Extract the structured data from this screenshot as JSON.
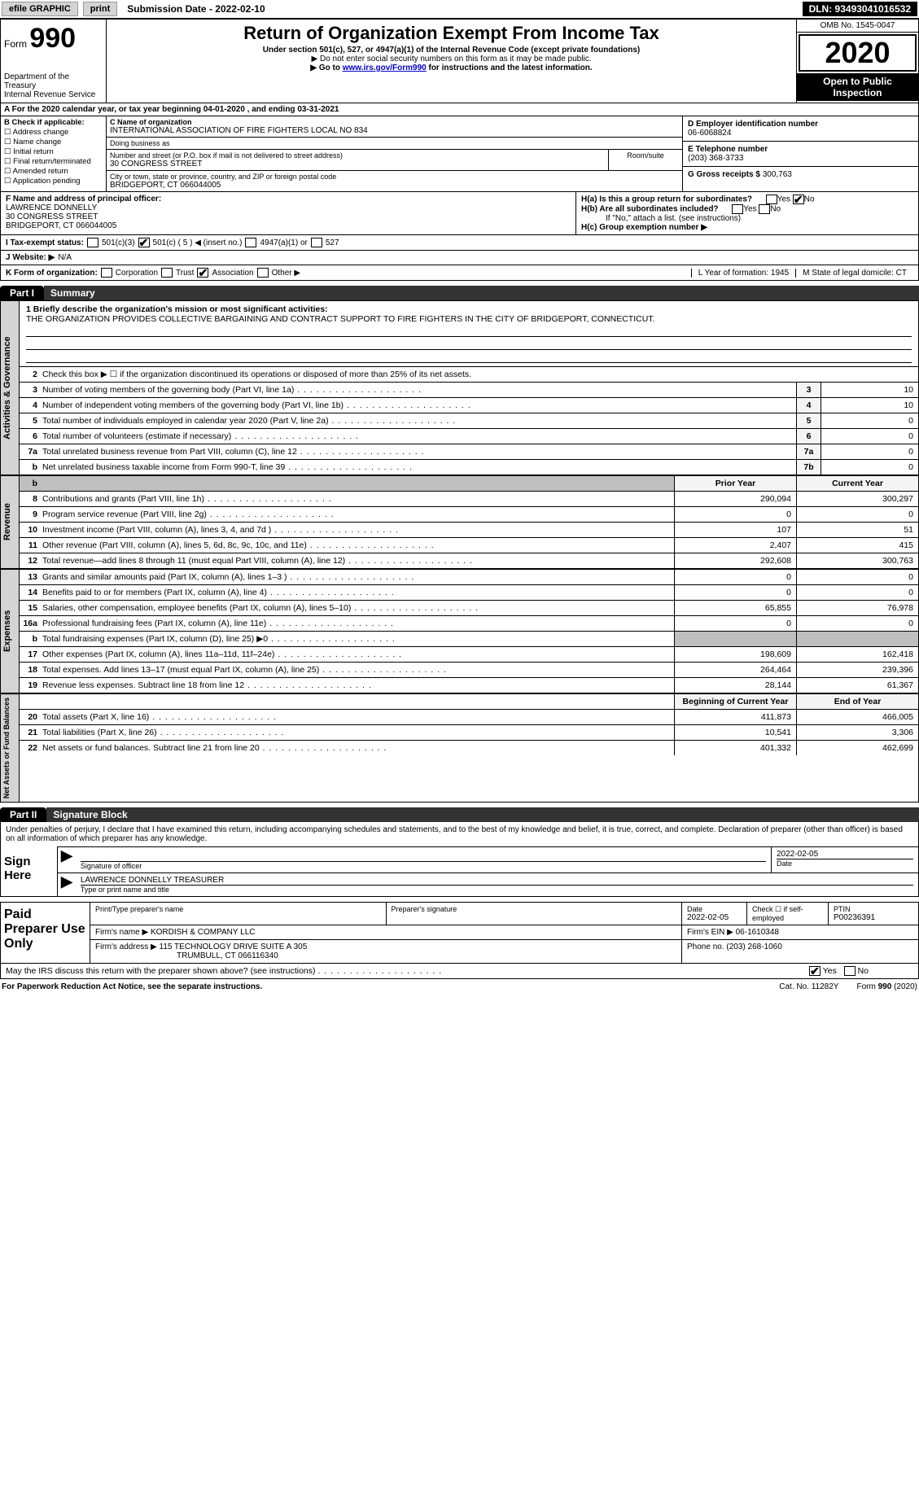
{
  "topbar": {
    "efile": "efile GRAPHIC",
    "print": "print",
    "submission_label": "Submission Date - 2022-02-10",
    "dln": "DLN: 93493041016532"
  },
  "header": {
    "form_label": "Form",
    "form_num": "990",
    "dept": "Department of the Treasury\nInternal Revenue Service",
    "title": "Return of Organization Exempt From Income Tax",
    "sub": "Under section 501(c), 527, or 4947(a)(1) of the Internal Revenue Code (except private foundations)",
    "note1": "▶ Do not enter social security numbers on this form as it may be made public.",
    "note2_pre": "▶ Go to ",
    "note2_link": "www.irs.gov/Form990",
    "note2_post": " for instructions and the latest information.",
    "omb": "OMB No. 1545-0047",
    "year": "2020",
    "open": "Open to Public Inspection"
  },
  "line_a": "A For the 2020 calendar year, or tax year beginning 04-01-2020    , and ending 03-31-2021",
  "box_b": {
    "title": "B Check if applicable:",
    "opts": [
      "Address change",
      "Name change",
      "Initial return",
      "Final return/terminated",
      "Amended return",
      "Application pending"
    ]
  },
  "box_c": {
    "name_lbl": "C Name of organization",
    "name": "INTERNATIONAL ASSOCIATION OF FIRE FIGHTERS LOCAL NO 834",
    "dba_lbl": "Doing business as",
    "street_lbl": "Number and street (or P.O. box if mail is not delivered to street address)",
    "room_lbl": "Room/suite",
    "street": "30 CONGRESS STREET",
    "city_lbl": "City or town, state or province, country, and ZIP or foreign postal code",
    "city": "BRIDGEPORT, CT  066044005"
  },
  "box_d": {
    "lbl": "D Employer identification number",
    "val": "06-6068824"
  },
  "box_e": {
    "lbl": "E Telephone number",
    "val": "(203) 368-3733"
  },
  "box_g": {
    "lbl": "G Gross receipts $",
    "val": "300,763"
  },
  "box_f": {
    "lbl": "F Name and address of principal officer:",
    "name": "LAWRENCE DONNELLY",
    "street": "30 CONGRESS STREET",
    "city": "BRIDGEPORT, CT  066044005"
  },
  "box_h": {
    "ha": "H(a)  Is this a group return for subordinates?",
    "hb": "H(b)  Are all subordinates included?",
    "hb_note": "If \"No,\" attach a list. (see instructions)",
    "hc": "H(c)  Group exemption number ▶",
    "yes": "Yes",
    "no": "No"
  },
  "row_i": {
    "lbl": "I    Tax-exempt status:",
    "o1": "501(c)(3)",
    "o2": "501(c) ( 5 ) ◀ (insert no.)",
    "o3": "4947(a)(1) or",
    "o4": "527"
  },
  "row_j": {
    "lbl": "J   Website: ▶",
    "val": "N/A"
  },
  "row_k": {
    "lbl": "K Form of organization:",
    "o1": "Corporation",
    "o2": "Trust",
    "o3": "Association",
    "o4": "Other ▶",
    "l": "L Year of formation: 1945",
    "m": "M State of legal domicile: CT"
  },
  "part1": {
    "tab": "Part I",
    "title": "Summary"
  },
  "mission": {
    "q": "1  Briefly describe the organization's mission or most significant activities:",
    "text": "THE ORGANIZATION PROVIDES COLLECTIVE BARGAINING AND CONTRACT SUPPORT TO FIRE FIGHTERS IN THE CITY OF BRIDGEPORT, CONNECTICUT."
  },
  "gov": {
    "tab": "Activities & Governance",
    "q2": "Check this box ▶ ☐  if the organization discontinued its operations or disposed of more than 25% of its net assets.",
    "rows": [
      {
        "n": "3",
        "t": "Number of voting members of the governing body (Part VI, line 1a)",
        "b": "3",
        "v": "10"
      },
      {
        "n": "4",
        "t": "Number of independent voting members of the governing body (Part VI, line 1b)",
        "b": "4",
        "v": "10"
      },
      {
        "n": "5",
        "t": "Total number of individuals employed in calendar year 2020 (Part V, line 2a)",
        "b": "5",
        "v": "0"
      },
      {
        "n": "6",
        "t": "Total number of volunteers (estimate if necessary)",
        "b": "6",
        "v": "0"
      },
      {
        "n": "7a",
        "t": "Total unrelated business revenue from Part VIII, column (C), line 12",
        "b": "7a",
        "v": "0"
      },
      {
        "n": "b",
        "t": "Net unrelated business taxable income from Form 990-T, line 39",
        "b": "7b",
        "v": "0"
      }
    ]
  },
  "cols": {
    "prior": "Prior Year",
    "current": "Current Year",
    "boy": "Beginning of Current Year",
    "eoy": "End of Year"
  },
  "rev": {
    "tab": "Revenue",
    "rows": [
      {
        "n": "8",
        "t": "Contributions and grants (Part VIII, line 1h)",
        "p": "290,094",
        "c": "300,297"
      },
      {
        "n": "9",
        "t": "Program service revenue (Part VIII, line 2g)",
        "p": "0",
        "c": "0"
      },
      {
        "n": "10",
        "t": "Investment income (Part VIII, column (A), lines 3, 4, and 7d )",
        "p": "107",
        "c": "51"
      },
      {
        "n": "11",
        "t": "Other revenue (Part VIII, column (A), lines 5, 6d, 8c, 9c, 10c, and 11e)",
        "p": "2,407",
        "c": "415"
      },
      {
        "n": "12",
        "t": "Total revenue—add lines 8 through 11 (must equal Part VIII, column (A), line 12)",
        "p": "292,608",
        "c": "300,763"
      }
    ]
  },
  "exp": {
    "tab": "Expenses",
    "rows": [
      {
        "n": "13",
        "t": "Grants and similar amounts paid (Part IX, column (A), lines 1–3 )",
        "p": "0",
        "c": "0"
      },
      {
        "n": "14",
        "t": "Benefits paid to or for members (Part IX, column (A), line 4)",
        "p": "0",
        "c": "0"
      },
      {
        "n": "15",
        "t": "Salaries, other compensation, employee benefits (Part IX, column (A), lines 5–10)",
        "p": "65,855",
        "c": "76,978"
      },
      {
        "n": "16a",
        "t": "Professional fundraising fees (Part IX, column (A), line 11e)",
        "p": "0",
        "c": "0"
      },
      {
        "n": "b",
        "t": "Total fundraising expenses (Part IX, column (D), line 25) ▶0",
        "p": "",
        "c": "",
        "gray": true
      },
      {
        "n": "17",
        "t": "Other expenses (Part IX, column (A), lines 11a–11d, 11f–24e)",
        "p": "198,609",
        "c": "162,418"
      },
      {
        "n": "18",
        "t": "Total expenses. Add lines 13–17 (must equal Part IX, column (A), line 25)",
        "p": "264,464",
        "c": "239,396"
      },
      {
        "n": "19",
        "t": "Revenue less expenses. Subtract line 18 from line 12",
        "p": "28,144",
        "c": "61,367"
      }
    ]
  },
  "net": {
    "tab": "Net Assets or Fund Balances",
    "rows": [
      {
        "n": "20",
        "t": "Total assets (Part X, line 16)",
        "p": "411,873",
        "c": "466,005"
      },
      {
        "n": "21",
        "t": "Total liabilities (Part X, line 26)",
        "p": "10,541",
        "c": "3,306"
      },
      {
        "n": "22",
        "t": "Net assets or fund balances. Subtract line 21 from line 20",
        "p": "401,332",
        "c": "462,699"
      }
    ]
  },
  "part2": {
    "tab": "Part II",
    "title": "Signature Block"
  },
  "sig": {
    "penalties": "Under penalties of perjury, I declare that I have examined this return, including accompanying schedules and statements, and to the best of my knowledge and belief, it is true, correct, and complete. Declaration of preparer (other than officer) is based on all information of which preparer has any knowledge.",
    "sign_here": "Sign Here",
    "sig_officer": "Signature of officer",
    "date": "2022-02-05",
    "date_lbl": "Date",
    "name": "LAWRENCE DONNELLY  TREASURER",
    "name_lbl": "Type or print name and title"
  },
  "prep": {
    "label": "Paid Preparer Use Only",
    "h1": "Print/Type preparer's name",
    "h2": "Preparer's signature",
    "h3": "Date",
    "h3v": "2022-02-05",
    "h4": "Check ☐ if self-employed",
    "h5": "PTIN",
    "h5v": "P00236391",
    "firm_lbl": "Firm's name    ▶",
    "firm": "KORDISH & COMPANY LLC",
    "ein_lbl": "Firm's EIN ▶",
    "ein": "06-1610348",
    "addr_lbl": "Firm's address ▶",
    "addr1": "115 TECHNOLOGY DRIVE SUITE A 305",
    "addr2": "TRUMBULL, CT  066116340",
    "phone_lbl": "Phone no.",
    "phone": "(203) 268-1060"
  },
  "discuss": {
    "q": "May the IRS discuss this return with the preparer shown above? (see instructions)",
    "yes": "Yes",
    "no": "No"
  },
  "footer": {
    "pra": "For Paperwork Reduction Act Notice, see the separate instructions.",
    "cat": "Cat. No. 11282Y",
    "form": "Form 990 (2020)"
  },
  "colors": {
    "bg": "#ffffff",
    "text": "#000000",
    "btn_gray": "#d4d4d4",
    "link": "#0000cc",
    "gray_cell": "#bfbfbf",
    "vtab_bg": "#d4d4d4"
  }
}
